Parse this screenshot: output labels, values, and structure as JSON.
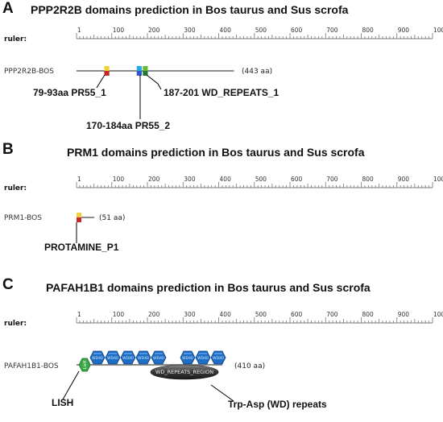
{
  "panels": [
    {
      "letter": "A",
      "title": "PPP2R2B domains prediction in  Bos taurus and Sus scrofa",
      "ruler_label": "ruler:",
      "protein": "PPP2R2B-BOS",
      "length_label": "(443 aa)",
      "annotations": [
        "79-93aa PR55_1",
        "170-184aa PR55_2",
        "187-201 WD_REPEATS_1"
      ]
    },
    {
      "letter": "B",
      "title": "PRM1 domains prediction in Bos taurus and Sus scrofa",
      "ruler_label": "ruler:",
      "protein": "PRM1-BOS",
      "length_label": "(51 aa)",
      "annotations": [
        "PROTAMINE_P1"
      ]
    },
    {
      "letter": "C",
      "title": "PAFAH1B1 domains prediction in Bos taurus and Sus scrofa",
      "ruler_label": "ruler:",
      "protein": "PAFAH1B1-BOS",
      "length_label": "(410 aa)",
      "region_label": "WD_REPEATS_REGION",
      "lish_glyph": "LisH",
      "wd_glyph": "WD40",
      "annotations": [
        "LISH",
        "Trp-Asp (WD) repeats"
      ]
    }
  ],
  "ruler": {
    "ticks": [
      "1",
      "100",
      "200",
      "300",
      "400",
      "500",
      "600",
      "700",
      "800",
      "900",
      "1000"
    ],
    "min": 1,
    "max": 1000
  },
  "proteins": [
    {
      "length": 443,
      "domains": [
        {
          "name": "PR55_1",
          "start": 79,
          "end": 93,
          "colors": [
            "#f2d23a",
            "#c62828"
          ]
        },
        {
          "name": "PR55_2",
          "start": 170,
          "end": 184,
          "colors": [
            "#29a9e0",
            "#3355cc"
          ]
        },
        {
          "name": "WD_REPEATS_1",
          "start": 187,
          "end": 201,
          "colors": [
            "#66bb33",
            "#1f7a3a"
          ]
        }
      ]
    },
    {
      "length": 51,
      "domains": [
        {
          "name": "PROTAMINE_P1",
          "start": 1,
          "end": 10,
          "colors": [
            "#f2d23a",
            "#c62828"
          ]
        }
      ]
    },
    {
      "length": 410,
      "domains": [
        {
          "name": "LISH",
          "start": 8,
          "end": 40
        },
        {
          "name": "WD_REPEATS_REGION",
          "start": 105,
          "end": 408
        }
      ]
    }
  ],
  "colors": {
    "backbone": "#8c8c8c",
    "ruler": "#777777",
    "wd_hex": "#1e6fc4",
    "lish_hex": "#3aa845",
    "region_oval": "#3a3a3a"
  }
}
